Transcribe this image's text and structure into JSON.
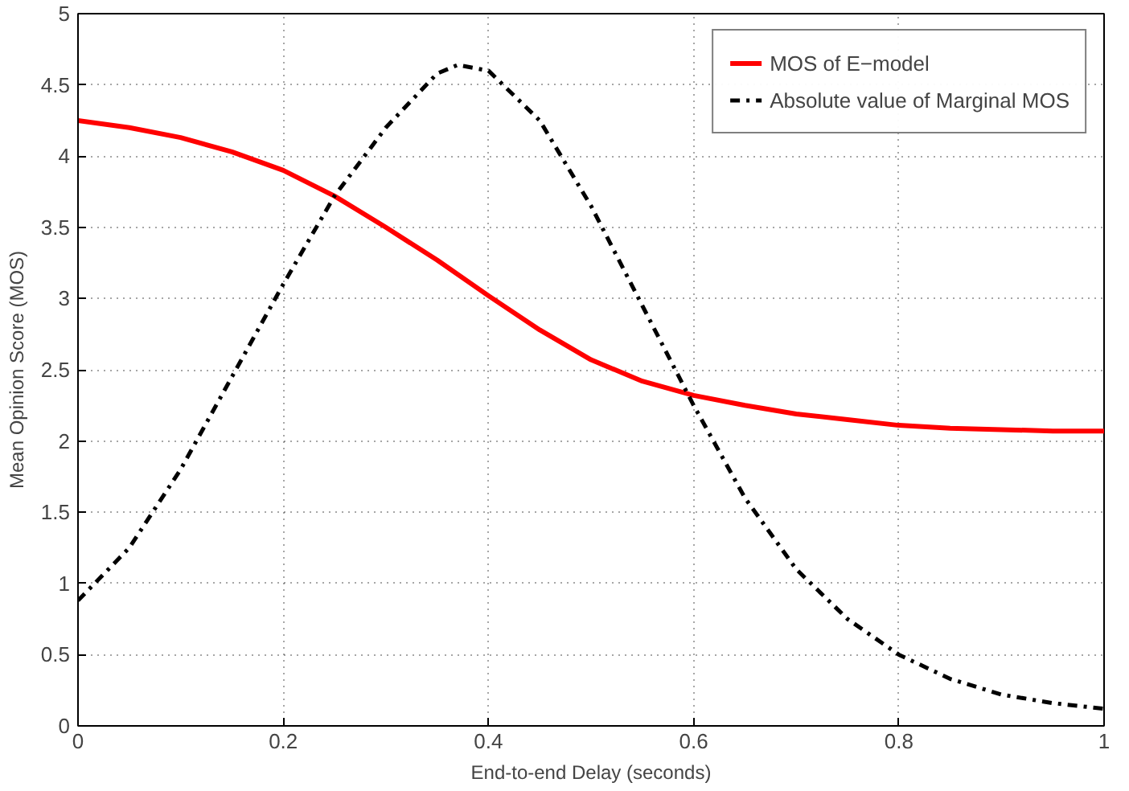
{
  "chart_data": {
    "type": "line",
    "xlabel": "End-to-end Delay (seconds)",
    "ylabel": "Mean Opinion Score (MOS)",
    "xlim": [
      0,
      1
    ],
    "ylim": [
      0,
      5
    ],
    "xticks": [
      0,
      0.2,
      0.4,
      0.6,
      0.8,
      1
    ],
    "yticks": [
      0,
      0.5,
      1,
      1.5,
      2,
      2.5,
      3,
      3.5,
      4,
      4.5,
      5
    ],
    "grid": true,
    "legend": "top right",
    "series": [
      {
        "name": "MOS of E−model",
        "color": "#ff0000",
        "line_style": "solid",
        "x": [
          0,
          0.05,
          0.1,
          0.15,
          0.2,
          0.25,
          0.3,
          0.35,
          0.4,
          0.45,
          0.5,
          0.55,
          0.6,
          0.65,
          0.7,
          0.75,
          0.8,
          0.85,
          0.9,
          0.95,
          1.0
        ],
        "values": [
          4.25,
          4.2,
          4.13,
          4.03,
          3.9,
          3.72,
          3.5,
          3.27,
          3.02,
          2.78,
          2.57,
          2.42,
          2.32,
          2.25,
          2.19,
          2.15,
          2.11,
          2.09,
          2.08,
          2.07,
          2.07
        ]
      },
      {
        "name": "Absolute value of Marginal MOS",
        "color": "#000000",
        "line_style": "dashdot",
        "x": [
          0,
          0.05,
          0.1,
          0.15,
          0.2,
          0.25,
          0.3,
          0.35,
          0.37,
          0.4,
          0.45,
          0.5,
          0.55,
          0.6,
          0.65,
          0.7,
          0.75,
          0.8,
          0.85,
          0.9,
          0.95,
          1.0
        ],
        "values": [
          0.88,
          1.25,
          1.8,
          2.45,
          3.1,
          3.72,
          4.2,
          4.58,
          4.64,
          4.6,
          4.25,
          3.65,
          2.95,
          2.25,
          1.6,
          1.1,
          0.75,
          0.5,
          0.33,
          0.22,
          0.16,
          0.12
        ]
      }
    ]
  }
}
